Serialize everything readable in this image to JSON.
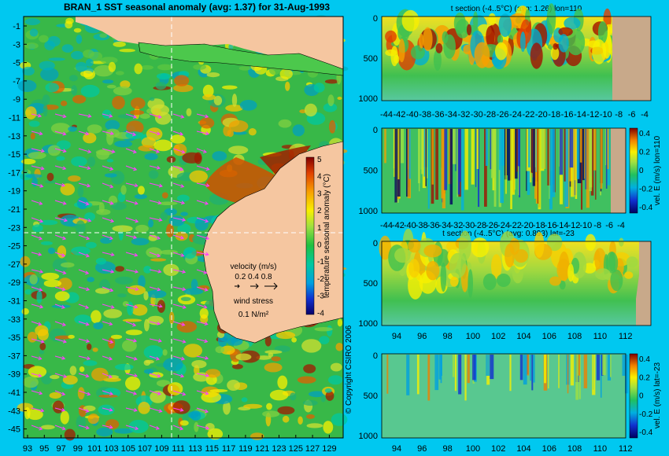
{
  "colors": {
    "background": "#00c8f0",
    "land": "#f5c6a0",
    "deep_land": "#c8a98a",
    "wind_arrow": "#ff40ff"
  },
  "chart_data": [
    {
      "type": "heatmap",
      "title": "BRAN_1  SST seasonal anomaly (avg: 1.37) for 31-Aug-1993",
      "x_ticks": [
        "93",
        "95",
        "97",
        "99",
        "101",
        "103",
        "105",
        "107",
        "109",
        "111",
        "113",
        "115",
        "117",
        "119",
        "121",
        "123",
        "125",
        "127",
        "129"
      ],
      "y_ticks": [
        "-1",
        "-3",
        "-5",
        "-7",
        "-9",
        "-11",
        "-13",
        "-15",
        "-17",
        "-19",
        "-21",
        "-23",
        "-25",
        "-27",
        "-29",
        "-31",
        "-33",
        "-35",
        "-37",
        "-39",
        "-41",
        "-43",
        "-45"
      ],
      "colorbar": {
        "label": "temperature seasonal anomaly (°C)",
        "ticks": [
          "5",
          "4",
          "3",
          "2",
          "1",
          "0",
          "-1",
          "-2",
          "-3",
          "-4"
        ],
        "range": [
          -4,
          5
        ]
      },
      "legend": {
        "velocity_title": "velocity (m/s)",
        "velocity_scale": "0.2 0.4 0.8",
        "wind_title": "wind stress",
        "wind_scale": "0.1 N/m²"
      },
      "copyright": "© Copyright CSIRO 2006"
    },
    {
      "type": "heatmap",
      "title": "t section (-4..5°C) (avg: 1.26) lon=110",
      "x_ticks": [
        "-44",
        "-42",
        "-40",
        "-38",
        "-36",
        "-34",
        "-32",
        "-30",
        "-28",
        "-26",
        "-24",
        "-22",
        "-20",
        "-18",
        "-16",
        "-14",
        "-12",
        "-10",
        "-8",
        "-6",
        "-4"
      ],
      "y_ticks": [
        "0",
        "500",
        "1000"
      ]
    },
    {
      "type": "heatmap",
      "title": "",
      "x_ticks": [
        "-44",
        "-42",
        "-40",
        "-38",
        "-36",
        "-34",
        "-32",
        "-30",
        "-28",
        "-26",
        "-24",
        "-22",
        "-20",
        "-18",
        "-16",
        "-14",
        "-12",
        "-10",
        "-8",
        "-6",
        "-4"
      ],
      "y_ticks": [
        "0",
        "500",
        "1000"
      ],
      "colorbar": {
        "label": "vel. E (m/s) lon=110",
        "ticks": [
          "0.4",
          "0.2",
          "0",
          "-0.2",
          "-0.4"
        ]
      }
    },
    {
      "type": "heatmap",
      "title": "t section (-4..5°C) (avg: 0.893) lat=-23",
      "x_ticks": [
        "94",
        "96",
        "98",
        "100",
        "102",
        "104",
        "106",
        "108",
        "110",
        "112"
      ],
      "y_ticks": [
        "0",
        "500",
        "1000"
      ]
    },
    {
      "type": "heatmap",
      "title": "",
      "x_ticks": [
        "94",
        "96",
        "98",
        "100",
        "102",
        "104",
        "106",
        "108",
        "110",
        "112"
      ],
      "y_ticks": [
        "0",
        "500",
        "1000"
      ],
      "colorbar": {
        "label": "vel. E (m/s) lat=-23",
        "ticks": [
          "0.4",
          "0.2",
          "0",
          "-0.2",
          "-0.4"
        ]
      }
    }
  ]
}
